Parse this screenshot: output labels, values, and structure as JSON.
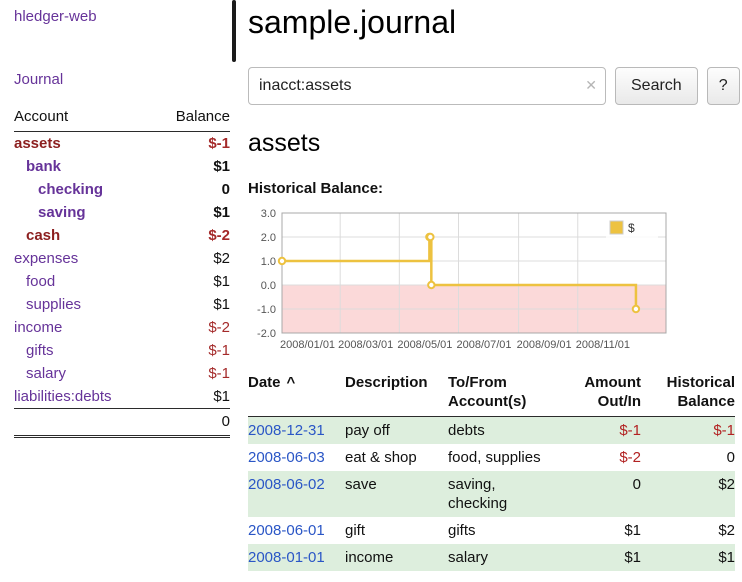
{
  "colors": {
    "link_purple": "#663399",
    "negative_red_bold": "#8c1f1f",
    "negative_red": "#a42a2a",
    "table_negative_red": "#b22222",
    "date_link_blue": "#2a56c6",
    "row_stripe_green": "#ddeedd",
    "chart_line_gold": "#edc240",
    "chart_negative_region_pink": "#fbd9d9"
  },
  "sidebar": {
    "brand": "hledger-web",
    "journal_label": "Journal",
    "accounts": {
      "header_account": "Account",
      "header_balance": "Balance",
      "rows": [
        {
          "name": "assets",
          "balance": "$-1",
          "indent": 0,
          "bold": true,
          "name_negative": true,
          "balance_negative": true
        },
        {
          "name": "bank",
          "balance": "$1",
          "indent": 1,
          "bold": true,
          "name_negative": false,
          "balance_negative": false
        },
        {
          "name": "checking",
          "balance": "0",
          "indent": 2,
          "bold": true,
          "name_negative": false,
          "balance_negative": false
        },
        {
          "name": "saving",
          "balance": "$1",
          "indent": 2,
          "bold": true,
          "name_negative": false,
          "balance_negative": false
        },
        {
          "name": "cash",
          "balance": "$-2",
          "indent": 1,
          "bold": true,
          "name_negative": true,
          "balance_negative": true
        },
        {
          "name": "expenses",
          "balance": "$2",
          "indent": 0,
          "bold": false,
          "name_negative": false,
          "balance_negative": false
        },
        {
          "name": "food",
          "balance": "$1",
          "indent": 1,
          "bold": false,
          "name_negative": false,
          "balance_negative": false
        },
        {
          "name": "supplies",
          "balance": "$1",
          "indent": 1,
          "bold": false,
          "name_negative": false,
          "balance_negative": false
        },
        {
          "name": "income",
          "balance": "$-2",
          "indent": 0,
          "bold": false,
          "name_negative": false,
          "balance_negative": true
        },
        {
          "name": "gifts",
          "balance": "$-1",
          "indent": 1,
          "bold": false,
          "name_negative": false,
          "balance_negative": true
        },
        {
          "name": "salary",
          "balance": "$-1",
          "indent": 1,
          "bold": false,
          "name_negative": false,
          "balance_negative": true
        },
        {
          "name": "liabilities:debts",
          "balance": "$1",
          "indent": 0,
          "bold": false,
          "name_negative": false,
          "balance_negative": false
        }
      ],
      "total": "0"
    }
  },
  "main": {
    "title": "sample.journal",
    "search": {
      "value": "inacct:assets",
      "clear_icon": "✕",
      "button_label": "Search",
      "help_label": "?"
    },
    "account_heading": "assets",
    "chart_label": "Historical Balance:"
  },
  "chart_data": {
    "type": "line",
    "step": true,
    "title": "Historical Balance",
    "ylim": [
      -2,
      3
    ],
    "y_ticks": [
      3.0,
      2.0,
      1.0,
      0.0,
      -1.0,
      -2.0
    ],
    "x_ticks": [
      "2008/01/01",
      "2008/03/01",
      "2008/05/01",
      "2008/07/01",
      "2008/09/01",
      "2008/11/01"
    ],
    "grid": true,
    "negative_region_color": "#fbd9d9",
    "legend": {
      "label": "$",
      "position": "top-right"
    },
    "series": [
      {
        "name": "$",
        "color": "#edc240",
        "points": [
          {
            "date": "2008-01-01",
            "value": 1
          },
          {
            "date": "2008-06-01",
            "value": 2
          },
          {
            "date": "2008-06-02",
            "value": 2
          },
          {
            "date": "2008-06-03",
            "value": 0
          },
          {
            "date": "2008-12-31",
            "value": -1
          }
        ]
      }
    ]
  },
  "register": {
    "headers": {
      "date": "Date",
      "sort_indicator": "^",
      "description": "Description",
      "account": "To/From Account(s)",
      "amount": "Amount Out/In",
      "balance": "Historical Balance"
    },
    "rows": [
      {
        "date": "2008-12-31",
        "description": "pay off",
        "account": "debts",
        "amount": "$-1",
        "amount_negative": true,
        "balance": "$-1",
        "balance_negative": true
      },
      {
        "date": "2008-06-03",
        "description": "eat & shop",
        "account": "food, supplies",
        "amount": "$-2",
        "amount_negative": true,
        "balance": "0",
        "balance_negative": false
      },
      {
        "date": "2008-06-02",
        "description": "save",
        "account": "saving, checking",
        "amount": "0",
        "amount_negative": false,
        "balance": "$2",
        "balance_negative": false
      },
      {
        "date": "2008-06-01",
        "description": "gift",
        "account": "gifts",
        "amount": "$1",
        "amount_negative": false,
        "balance": "$2",
        "balance_negative": false
      },
      {
        "date": "2008-01-01",
        "description": "income",
        "account": "salary",
        "amount": "$1",
        "amount_negative": false,
        "balance": "$1",
        "balance_negative": false
      }
    ]
  }
}
